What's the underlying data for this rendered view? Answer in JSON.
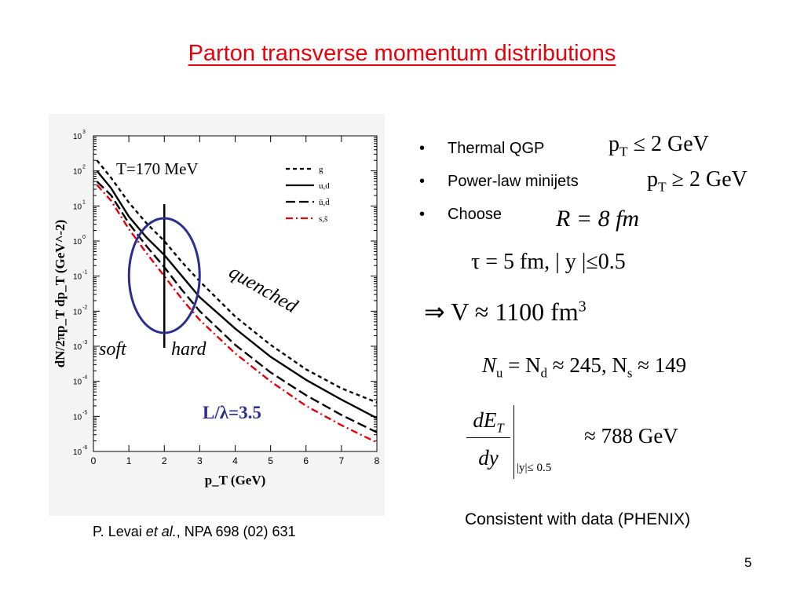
{
  "slide": {
    "title": "Parton transverse momentum distributions",
    "citation_prefix": "P. Levai ",
    "citation_italic": "et al.",
    "citation_suffix": ",  NPA 698 (02) 631",
    "slide_number": "5",
    "bullets": [
      "Thermal QGP",
      "Power-law minijets",
      "Choose"
    ],
    "formulas": {
      "qgp_pt": "p",
      "qgp_sub": "T",
      "qgp_rel": " ≤ 2 GeV",
      "minijet_pt": "p",
      "minijet_sub": "T",
      "minijet_rel": " ≥ 2 GeV",
      "radius": "R = 8 fm",
      "tau": "τ = 5 fm,    | y |≤0.5",
      "volume_prefix": "⇒   V ≈ 1100 fm",
      "volume_sup": "3",
      "nu": "N",
      "nu_sub": "u",
      "nd_rel": " = N",
      "nd_sub": "d",
      "n_ud_val": " ≈ 245,   N",
      "ns_sub": "s",
      "ns_val": " ≈ 149",
      "det_num": "dE",
      "det_num_sub": "T",
      "det_den": "dy",
      "det_cond": "|y|≤   0.5",
      "det_val": "≈ 788 GeV"
    },
    "consistent_text": "Consistent with data (PHENIX)"
  },
  "chart_data": {
    "type": "line",
    "title": "",
    "xlabel": "p_T (GeV)",
    "ylabel": "dN/2πp_T dp_T (GeV^-2)",
    "xlim": [
      0,
      8
    ],
    "ylim_log10": [
      -6,
      3
    ],
    "yscale": "log",
    "x_ticks": [
      "0",
      "1",
      "2",
      "3",
      "4",
      "5",
      "6",
      "7",
      "8"
    ],
    "y_ticks": [
      {
        "base": "10",
        "exp": "3"
      },
      {
        "base": "10",
        "exp": "2"
      },
      {
        "base": "10",
        "exp": "1"
      },
      {
        "base": "10",
        "exp": "0"
      },
      {
        "base": "10",
        "exp": "-1"
      },
      {
        "base": "10",
        "exp": "-2"
      },
      {
        "base": "10",
        "exp": "-3"
      },
      {
        "base": "10",
        "exp": "-4"
      },
      {
        "base": "10",
        "exp": "-5"
      },
      {
        "base": "10",
        "exp": "-6"
      }
    ],
    "x": [
      0.1,
      0.5,
      1.0,
      1.5,
      2.0,
      2.5,
      3.0,
      4.0,
      5.0,
      6.0,
      7.0,
      8.0
    ],
    "series": [
      {
        "name": "g",
        "style": "short-dash",
        "color": "#000000",
        "values": [
          200,
          63,
          12.6,
          3.2,
          1.0,
          0.25,
          0.071,
          0.0071,
          0.0011,
          0.00022,
          6.3e-05,
          2.5e-05
        ]
      },
      {
        "name": "u,d",
        "style": "solid",
        "color": "#000000",
        "values": [
          100,
          32,
          5.0,
          1.26,
          0.4,
          0.1,
          0.025,
          0.0032,
          0.0005,
          0.00011,
          3e-05,
          8.9e-06
        ]
      },
      {
        "name": "ū,d̄",
        "style": "long-dash",
        "color": "#000000",
        "values": [
          50,
          20,
          3.2,
          0.71,
          0.18,
          0.04,
          0.01,
          0.0011,
          0.00018,
          4e-05,
          1.1e-05,
          3.5e-06
        ]
      },
      {
        "name": "s,s̄",
        "style": "dash-dot",
        "color": "#e8000b",
        "values": [
          40,
          14,
          2.2,
          0.45,
          0.1,
          0.022,
          0.0056,
          0.00063,
          0.0001,
          2e-05,
          5.6e-06,
          1.8e-06
        ]
      }
    ],
    "annotations": {
      "temperature": "T=170 MeV",
      "quenched": "quenched",
      "soft": "soft",
      "hard": "hard",
      "l_lambda": "L/λ=3.5"
    },
    "divider_x": 2.0,
    "legend_position": "top-right",
    "colors": {
      "circle": "#2b2e8f",
      "accent": "#e8000b",
      "l_lambda": "#2b2e8f"
    }
  }
}
